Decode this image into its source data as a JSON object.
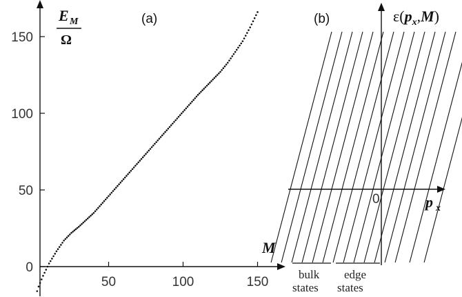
{
  "chart_data": [
    {
      "type": "scatter",
      "panel_label": "(a)",
      "xlabel": "M",
      "ylabel_numerator": "E",
      "ylabel_subscript": "M",
      "ylabel_denominator": "Ω",
      "xlim": [
        -8,
        160
      ],
      "ylim": [
        -20,
        160
      ],
      "xticks": [
        50,
        100,
        150
      ],
      "yticks": [
        0,
        50,
        100,
        150
      ],
      "grid": false,
      "series": [
        {
          "points_x_start": 1,
          "points_x_end": 150,
          "points_x_step": 1,
          "curve_samples": [
            [
              1,
              -19
            ],
            [
              3,
              -13
            ],
            [
              6,
              -6
            ],
            [
              10,
              2
            ],
            [
              15,
              10
            ],
            [
              20,
              17
            ],
            [
              25,
              22
            ],
            [
              30,
              26
            ],
            [
              40,
              35
            ],
            [
              50,
              46
            ],
            [
              60,
              57
            ],
            [
              70,
              68
            ],
            [
              80,
              79
            ],
            [
              90,
              90
            ],
            [
              100,
              101
            ],
            [
              110,
              112
            ],
            [
              120,
              122
            ],
            [
              125,
              127
            ],
            [
              130,
              133
            ],
            [
              135,
              140
            ],
            [
              140,
              147
            ],
            [
              145,
              156
            ],
            [
              150,
              166
            ]
          ]
        }
      ]
    },
    {
      "type": "line",
      "panel_label": "(b)",
      "xlabel_symbol": "p",
      "xlabel_subscript": "x",
      "ylabel_prefix": "ε(",
      "ylabel_p": "p",
      "ylabel_sub": "x",
      "ylabel_mid": ",",
      "ylabel_M": "M",
      "ylabel_suffix": ")",
      "origin_label": "0",
      "line_count": 15,
      "line_slope": 3.8,
      "line_intercepts_px": [
        -2.2,
        -1.95,
        -1.7,
        -1.45,
        -1.2,
        -0.95,
        -0.7,
        -0.45,
        -0.2,
        0.05,
        0.3,
        0.55,
        0.8,
        1.15,
        1.5
      ],
      "groups": [
        {
          "line1": "bulk",
          "line2": "states"
        },
        {
          "line1": "edge",
          "line2": "states"
        }
      ]
    }
  ]
}
